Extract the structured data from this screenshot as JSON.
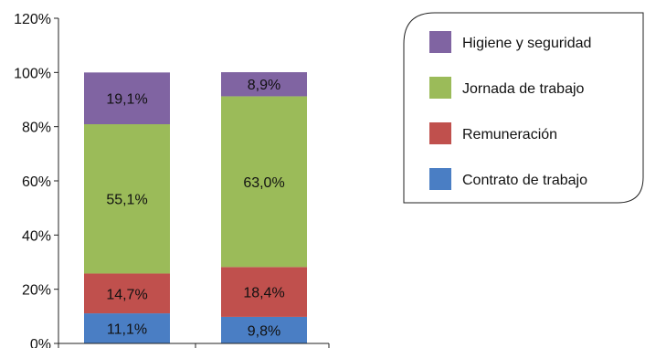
{
  "chart_data": {
    "type": "bar",
    "stacked": true,
    "categories": [
      "",
      ""
    ],
    "ylim": [
      0,
      120
    ],
    "yticks": [
      0,
      20,
      40,
      60,
      80,
      100,
      120
    ],
    "ytick_labels": [
      "0%",
      "20%",
      "40%",
      "60%",
      "80%",
      "100%",
      "120%"
    ],
    "grid": false,
    "legend_position": "top-right",
    "series": [
      {
        "name": "Contrato de trabajo",
        "color": "#4A7EC4",
        "values": [
          11.1,
          9.8
        ],
        "labels": [
          "11,1%",
          "9,8%"
        ]
      },
      {
        "name": "Remuneración",
        "color": "#C0504D",
        "values": [
          14.7,
          18.4
        ],
        "labels": [
          "14,7%",
          "18,4%"
        ]
      },
      {
        "name": "Jornada de trabajo",
        "color": "#9BBB59",
        "values": [
          55.1,
          63.0
        ],
        "labels": [
          "55,1%",
          "63,0%"
        ]
      },
      {
        "name": "Higiene y seguridad",
        "color": "#8064A2",
        "values": [
          19.1,
          8.9
        ],
        "labels": [
          "19,1%",
          "8,9%"
        ]
      }
    ],
    "legend_order": [
      "Higiene y seguridad",
      "Jornada de trabajo",
      "Remuneración",
      "Contrato de trabajo"
    ]
  }
}
